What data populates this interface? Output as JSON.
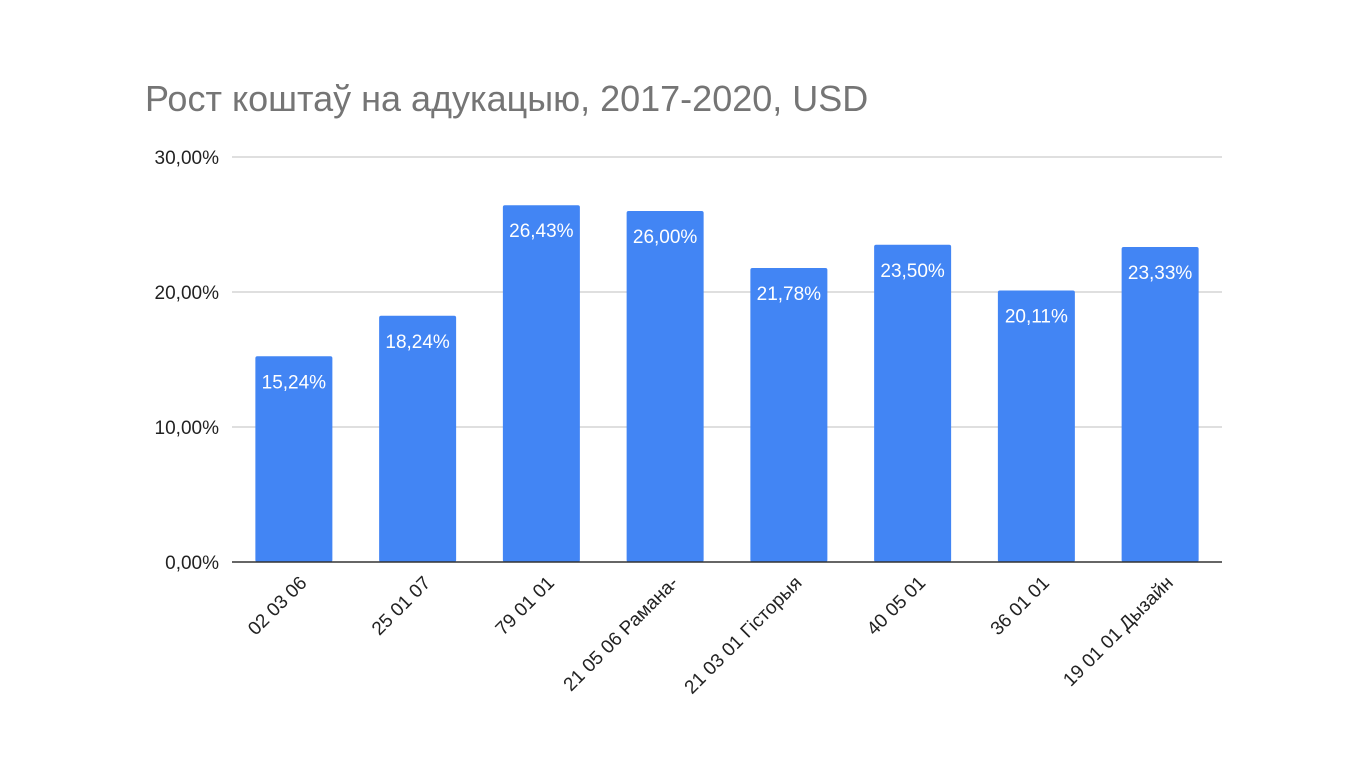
{
  "chart_data": {
    "type": "bar",
    "title": "Рост коштаў на адукацыю, 2017-2020, USD",
    "categories": [
      "02 03 06",
      "25 01 07",
      "79 01 01",
      "21 05 06 Рамана-",
      "21 03 01 Гісторыя",
      "40 05 01",
      "36 01 01",
      "19 01 01 Дызайн"
    ],
    "values": [
      15.24,
      18.24,
      26.43,
      26.0,
      21.78,
      23.5,
      20.11,
      23.33
    ],
    "data_labels": [
      "15,24%",
      "18,24%",
      "26,43%",
      "26,00%",
      "21,78%",
      "23,50%",
      "20,11%",
      "23,33%"
    ],
    "ylim": [
      0,
      30
    ],
    "yticks": [
      0,
      10,
      20,
      30
    ],
    "ytick_labels": [
      "0,00%",
      "10,00%",
      "20,00%",
      "30,00%"
    ],
    "xlabel": "",
    "ylabel": "",
    "grid": true,
    "legend": "none",
    "colors": {
      "bar": "#4285f4",
      "grid": "#cccccc",
      "axis": "#333333",
      "title": "#757575",
      "tick_text": "#222222",
      "bar_label": "#ffffff"
    }
  }
}
